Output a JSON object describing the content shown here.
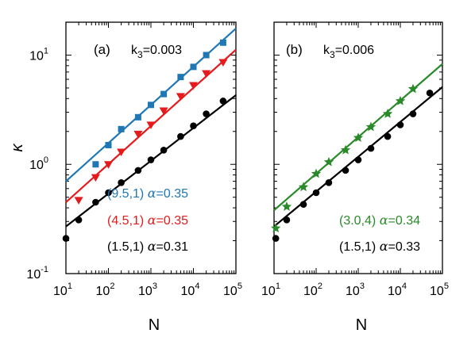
{
  "chart_data": [
    {
      "type": "scatter",
      "panel": "(a)",
      "title": "k3=0.003",
      "title_main": "k",
      "title_sub": "3",
      "title_rest": "=0.003",
      "xlabel": "N",
      "ylabel": "κ",
      "xscale": "log",
      "yscale": "log",
      "xlim": [
        10,
        100000
      ],
      "ylim": [
        0.1,
        20
      ],
      "grid": false,
      "series": [
        {
          "label_pair": "(9.5,1)",
          "label_alpha": "α=0.35",
          "color": "#1f77b4",
          "marker": "square",
          "x": [
            50,
            100,
            200,
            500,
            1000,
            2000,
            5000,
            10000,
            20000,
            50000
          ],
          "y": [
            1.0,
            1.5,
            2.1,
            2.7,
            3.5,
            4.4,
            6.3,
            7.8,
            10.0,
            13.0
          ],
          "fit": {
            "x": [
              10,
              100000
            ],
            "y": [
              0.7,
              17.5
            ]
          }
        },
        {
          "label_pair": "(4.5,1)",
          "label_alpha": "α=0.35",
          "color": "#e41a1c",
          "marker": "triangle-down",
          "x": [
            20,
            50,
            100,
            200,
            500,
            1000,
            2000,
            5000,
            10000,
            20000,
            50000
          ],
          "y": [
            0.47,
            0.76,
            1.0,
            1.3,
            1.9,
            2.3,
            3.1,
            4.2,
            5.3,
            6.8,
            8.6
          ],
          "fit": {
            "x": [
              10,
              100000
            ],
            "y": [
              0.45,
              11.2
            ]
          }
        },
        {
          "label_pair": "(1.5,1)",
          "label_alpha": "α=0.31",
          "color": "#000000",
          "marker": "circle",
          "x": [
            10,
            20,
            50,
            100,
            200,
            500,
            1000,
            2000,
            5000,
            10000,
            20000,
            50000
          ],
          "y": [
            0.21,
            0.31,
            0.45,
            0.55,
            0.68,
            0.88,
            1.1,
            1.35,
            1.8,
            2.25,
            2.9,
            3.8
          ],
          "fit": {
            "x": [
              10,
              100000
            ],
            "y": [
              0.27,
              4.3
            ]
          }
        }
      ]
    },
    {
      "type": "scatter",
      "panel": "(b)",
      "title": "k3=0.006",
      "title_main": "k",
      "title_sub": "3",
      "title_rest": "=0.006",
      "xlabel": "N",
      "ylabel": "",
      "xscale": "log",
      "yscale": "log",
      "xlim": [
        10,
        100000
      ],
      "ylim": [
        0.1,
        20
      ],
      "grid": false,
      "series": [
        {
          "label_pair": "(3.0,4)",
          "label_alpha": "α=0.34",
          "color": "#2a8a2a",
          "marker": "star",
          "x": [
            11,
            20,
            50,
            100,
            200,
            500,
            1000,
            2000,
            5000,
            10000,
            20000
          ],
          "y": [
            0.26,
            0.41,
            0.62,
            0.82,
            1.05,
            1.35,
            1.75,
            2.2,
            2.9,
            3.8,
            4.9
          ],
          "fit": {
            "x": [
              10,
              100000
            ],
            "y": [
              0.38,
              8.3
            ]
          }
        },
        {
          "label_pair": "(1.5,1)",
          "label_alpha": "α=0.33",
          "color": "#000000",
          "marker": "circle",
          "x": [
            11,
            20,
            50,
            100,
            200,
            500,
            1000,
            2000,
            5000,
            10000,
            20000,
            50000
          ],
          "y": [
            0.21,
            0.31,
            0.43,
            0.55,
            0.68,
            0.88,
            1.1,
            1.4,
            1.8,
            2.3,
            2.9,
            4.5
          ],
          "fit": {
            "x": [
              10,
              100000
            ],
            "y": [
              0.27,
              5.1
            ]
          }
        }
      ]
    }
  ],
  "x_tick_labels": [
    {
      "base": "10",
      "exp": "1"
    },
    {
      "base": "10",
      "exp": "2"
    },
    {
      "base": "10",
      "exp": "3"
    },
    {
      "base": "10",
      "exp": "4"
    },
    {
      "base": "10",
      "exp": "5"
    }
  ],
  "y_tick_labels": [
    {
      "base": "10",
      "exp": "1"
    },
    {
      "base": "10",
      "exp": "0"
    },
    {
      "base": "10",
      "exp": "-1"
    }
  ]
}
